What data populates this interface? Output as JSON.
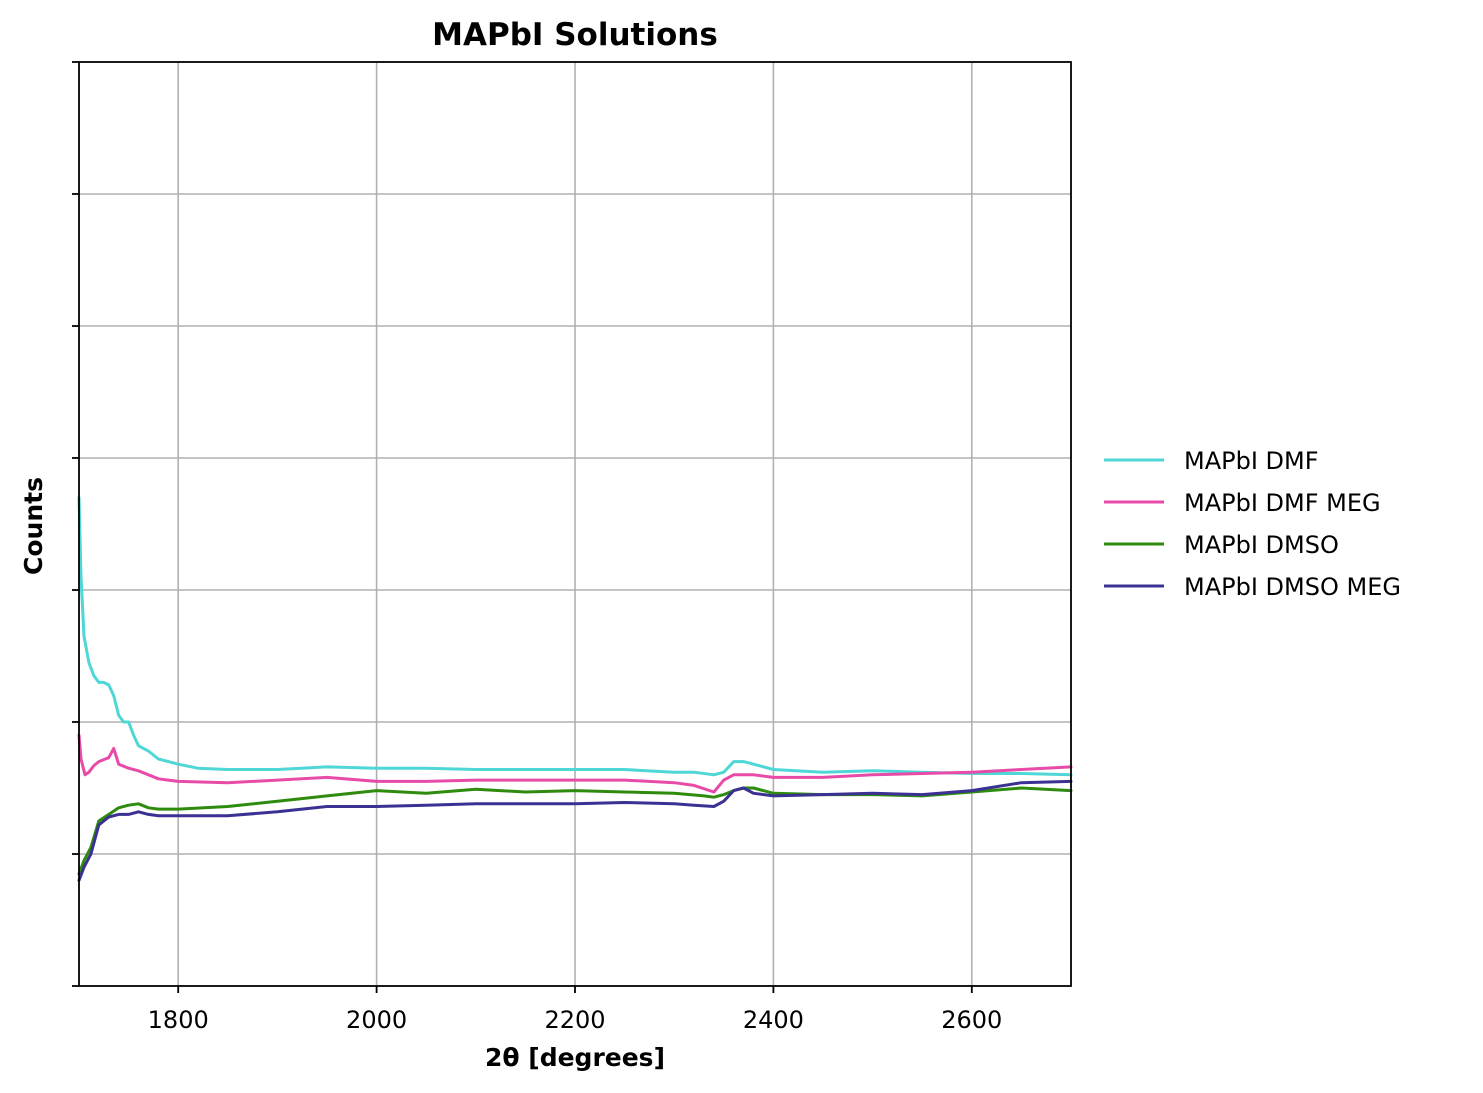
{
  "chart_data": {
    "type": "line",
    "title": "MAPbI Solutions",
    "xlabel": "2θ [degrees]",
    "ylabel": "Counts",
    "xlim": [
      1700,
      2700
    ],
    "ylim": [
      0,
      7
    ],
    "x_ticks": [
      1800,
      2000,
      2200,
      2400,
      2600
    ],
    "x_tick_labels": [
      "1800",
      "2000",
      "2200",
      "2400",
      "2600"
    ],
    "y_ticks": [
      0,
      1,
      2,
      3,
      4,
      5,
      6,
      7
    ],
    "y_tick_labels_visible": false,
    "grid": true,
    "legend": "outside-right",
    "series": [
      {
        "name": "MAPbI DMF",
        "color": "#4fd6d6",
        "points": [
          [
            1700,
            3.7
          ],
          [
            1702,
            3.1
          ],
          [
            1705,
            2.65
          ],
          [
            1710,
            2.45
          ],
          [
            1715,
            2.35
          ],
          [
            1720,
            2.3
          ],
          [
            1725,
            2.3
          ],
          [
            1730,
            2.28
          ],
          [
            1735,
            2.2
          ],
          [
            1740,
            2.05
          ],
          [
            1745,
            2.0
          ],
          [
            1750,
            2.0
          ],
          [
            1755,
            1.9
          ],
          [
            1760,
            1.82
          ],
          [
            1770,
            1.78
          ],
          [
            1780,
            1.72
          ],
          [
            1790,
            1.7
          ],
          [
            1800,
            1.68
          ],
          [
            1820,
            1.65
          ],
          [
            1850,
            1.64
          ],
          [
            1900,
            1.64
          ],
          [
            1950,
            1.66
          ],
          [
            2000,
            1.65
          ],
          [
            2050,
            1.65
          ],
          [
            2100,
            1.64
          ],
          [
            2150,
            1.64
          ],
          [
            2200,
            1.64
          ],
          [
            2250,
            1.64
          ],
          [
            2300,
            1.62
          ],
          [
            2320,
            1.62
          ],
          [
            2340,
            1.6
          ],
          [
            2350,
            1.62
          ],
          [
            2360,
            1.7
          ],
          [
            2370,
            1.7
          ],
          [
            2380,
            1.68
          ],
          [
            2400,
            1.64
          ],
          [
            2450,
            1.62
          ],
          [
            2500,
            1.63
          ],
          [
            2550,
            1.62
          ],
          [
            2600,
            1.61
          ],
          [
            2650,
            1.61
          ],
          [
            2700,
            1.6
          ]
        ]
      },
      {
        "name": "MAPbI DMF MEG",
        "color": "#e84aa8",
        "points": [
          [
            1700,
            1.9
          ],
          [
            1702,
            1.72
          ],
          [
            1706,
            1.6
          ],
          [
            1710,
            1.62
          ],
          [
            1715,
            1.67
          ],
          [
            1720,
            1.7
          ],
          [
            1730,
            1.73
          ],
          [
            1735,
            1.8
          ],
          [
            1740,
            1.68
          ],
          [
            1750,
            1.65
          ],
          [
            1760,
            1.63
          ],
          [
            1770,
            1.6
          ],
          [
            1780,
            1.57
          ],
          [
            1790,
            1.56
          ],
          [
            1800,
            1.55
          ],
          [
            1850,
            1.54
          ],
          [
            1900,
            1.56
          ],
          [
            1950,
            1.58
          ],
          [
            2000,
            1.55
          ],
          [
            2050,
            1.55
          ],
          [
            2100,
            1.56
          ],
          [
            2150,
            1.56
          ],
          [
            2200,
            1.56
          ],
          [
            2250,
            1.56
          ],
          [
            2300,
            1.54
          ],
          [
            2320,
            1.52
          ],
          [
            2340,
            1.47
          ],
          [
            2350,
            1.56
          ],
          [
            2360,
            1.6
          ],
          [
            2370,
            1.6
          ],
          [
            2380,
            1.6
          ],
          [
            2400,
            1.58
          ],
          [
            2450,
            1.58
          ],
          [
            2500,
            1.6
          ],
          [
            2550,
            1.61
          ],
          [
            2600,
            1.62
          ],
          [
            2650,
            1.64
          ],
          [
            2700,
            1.66
          ]
        ]
      },
      {
        "name": "MAPbI DMSO",
        "color": "#2e8b0e",
        "points": [
          [
            1700,
            0.85
          ],
          [
            1705,
            0.95
          ],
          [
            1712,
            1.05
          ],
          [
            1720,
            1.25
          ],
          [
            1730,
            1.3
          ],
          [
            1740,
            1.35
          ],
          [
            1750,
            1.37
          ],
          [
            1760,
            1.38
          ],
          [
            1770,
            1.35
          ],
          [
            1780,
            1.34
          ],
          [
            1800,
            1.34
          ],
          [
            1850,
            1.36
          ],
          [
            1900,
            1.4
          ],
          [
            1950,
            1.44
          ],
          [
            2000,
            1.48
          ],
          [
            2050,
            1.46
          ],
          [
            2100,
            1.49
          ],
          [
            2150,
            1.47
          ],
          [
            2200,
            1.48
          ],
          [
            2250,
            1.47
          ],
          [
            2300,
            1.46
          ],
          [
            2330,
            1.44
          ],
          [
            2340,
            1.43
          ],
          [
            2350,
            1.45
          ],
          [
            2360,
            1.48
          ],
          [
            2370,
            1.5
          ],
          [
            2380,
            1.5
          ],
          [
            2400,
            1.46
          ],
          [
            2450,
            1.45
          ],
          [
            2500,
            1.45
          ],
          [
            2550,
            1.44
          ],
          [
            2600,
            1.47
          ],
          [
            2650,
            1.5
          ],
          [
            2700,
            1.48
          ]
        ]
      },
      {
        "name": "MAPbI DMSO MEG",
        "color": "#3a3192",
        "points": [
          [
            1700,
            0.8
          ],
          [
            1705,
            0.9
          ],
          [
            1712,
            1.0
          ],
          [
            1720,
            1.22
          ],
          [
            1730,
            1.28
          ],
          [
            1740,
            1.3
          ],
          [
            1750,
            1.3
          ],
          [
            1760,
            1.32
          ],
          [
            1770,
            1.3
          ],
          [
            1780,
            1.29
          ],
          [
            1800,
            1.29
          ],
          [
            1850,
            1.29
          ],
          [
            1900,
            1.32
          ],
          [
            1950,
            1.36
          ],
          [
            2000,
            1.36
          ],
          [
            2050,
            1.37
          ],
          [
            2100,
            1.38
          ],
          [
            2150,
            1.38
          ],
          [
            2200,
            1.38
          ],
          [
            2250,
            1.39
          ],
          [
            2300,
            1.38
          ],
          [
            2320,
            1.37
          ],
          [
            2340,
            1.36
          ],
          [
            2350,
            1.4
          ],
          [
            2360,
            1.48
          ],
          [
            2370,
            1.5
          ],
          [
            2380,
            1.46
          ],
          [
            2400,
            1.44
          ],
          [
            2450,
            1.45
          ],
          [
            2500,
            1.46
          ],
          [
            2550,
            1.45
          ],
          [
            2600,
            1.48
          ],
          [
            2650,
            1.54
          ],
          [
            2700,
            1.55
          ]
        ]
      }
    ]
  }
}
